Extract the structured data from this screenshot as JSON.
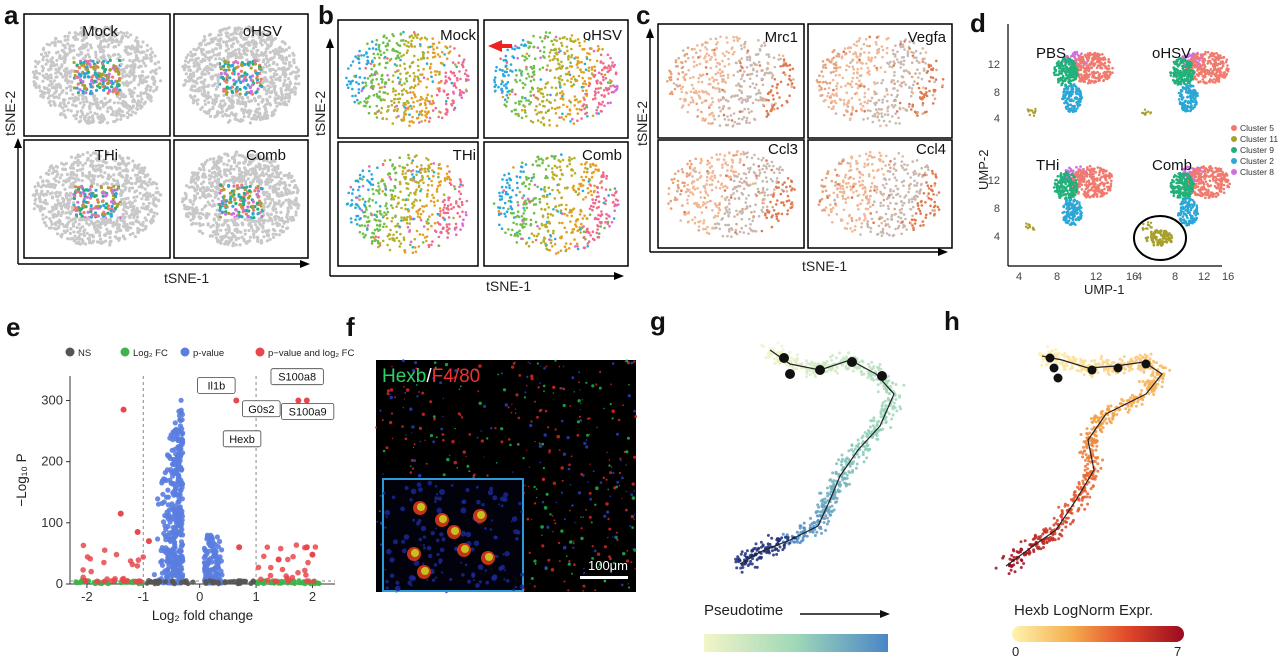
{
  "panel_labels": [
    "a",
    "b",
    "c",
    "d",
    "e",
    "f",
    "g",
    "h"
  ],
  "panel_a": {
    "titles": [
      "Mock",
      "oHSV",
      "THi",
      "Comb"
    ],
    "xlabel": "tSNE-1",
    "ylabel": "tSNE-2"
  },
  "panel_b": {
    "titles": [
      "Mock",
      "oHSV",
      "THi",
      "Comb"
    ],
    "xlabel": "tSNE-1",
    "ylabel": "tSNE-2"
  },
  "panel_c": {
    "titles": [
      "Mrc1",
      "Vegfa",
      "Ccl3",
      "Ccl4"
    ],
    "xlabel": "tSNE-1",
    "ylabel": "tSNE-2"
  },
  "panel_d": {
    "titles": [
      "PBS",
      "oHSV",
      "THi",
      "Comb"
    ],
    "xlabel": "UMP-1",
    "ylabel": "UMP-2",
    "xticks": [
      "4",
      "8",
      "12",
      "16"
    ],
    "yticks": [
      "4",
      "8",
      "12"
    ],
    "legend": [
      {
        "name": "Cluster 5",
        "color": "#f07a6e"
      },
      {
        "name": "Cluster 11",
        "color": "#a8a02a"
      },
      {
        "name": "Cluster 9",
        "color": "#22b07a"
      },
      {
        "name": "Cluster 2",
        "color": "#2aa7d6"
      },
      {
        "name": "Cluster 8",
        "color": "#d070e0"
      }
    ]
  },
  "chart_data": {
    "type": "scatter",
    "xlabel": "Log₂ fold change",
    "ylabel": "−Log₁₀ P",
    "xlim": [
      -2.3,
      2.4
    ],
    "ylim": [
      0,
      340
    ],
    "xticks": [
      -2,
      -1,
      0,
      1,
      2
    ],
    "yticks": [
      0,
      100,
      200,
      300
    ],
    "legend": [
      {
        "name": "NS",
        "color": "#555555"
      },
      {
        "name": "Log₂ FC",
        "color": "#3cb44b"
      },
      {
        "name": "p-value",
        "color": "#5a7de0"
      },
      {
        "name": "p−value and log₂ FC",
        "color": "#e8474c"
      }
    ],
    "annotations": [
      {
        "label": "Il1b",
        "x": 0.65,
        "y": 300
      },
      {
        "label": "G0s2",
        "x": 1.2,
        "y": 275
      },
      {
        "label": "Hexb",
        "x": 1.0,
        "y": 252
      },
      {
        "label": "S100a8",
        "x": 1.8,
        "y": 298
      },
      {
        "label": "S100a9",
        "x": 1.95,
        "y": 300
      }
    ],
    "highlight_points": [
      {
        "x": -1.35,
        "y": 285
      },
      {
        "x": 0.65,
        "y": 300
      },
      {
        "x": 1.05,
        "y": 280
      },
      {
        "x": 1.75,
        "y": 300
      },
      {
        "x": 1.9,
        "y": 300
      },
      {
        "x": -1.4,
        "y": 115
      },
      {
        "x": -1.1,
        "y": 85
      },
      {
        "x": 1.9,
        "y": 60
      },
      {
        "x": 2.0,
        "y": 48
      },
      {
        "x": -0.9,
        "y": 70
      },
      {
        "x": 1.4,
        "y": 40
      },
      {
        "x": 0.7,
        "y": 60
      }
    ]
  },
  "panel_f": {
    "label_green": "Hexb",
    "slash": "/",
    "label_red": "F4/80",
    "scalebar": "100μm"
  },
  "panel_g": {
    "colorbar_label": "Pseudotime"
  },
  "panel_h": {
    "colorbar_label": "Hexb LogNorm Expr.",
    "cmin": "0",
    "cmax": "7"
  },
  "colors": {
    "pseudotime_start": "#f2f5c8",
    "pseudotime_end": "#4a86c6",
    "expr_start": "#fff3b0",
    "expr_end": "#9a0a20"
  }
}
